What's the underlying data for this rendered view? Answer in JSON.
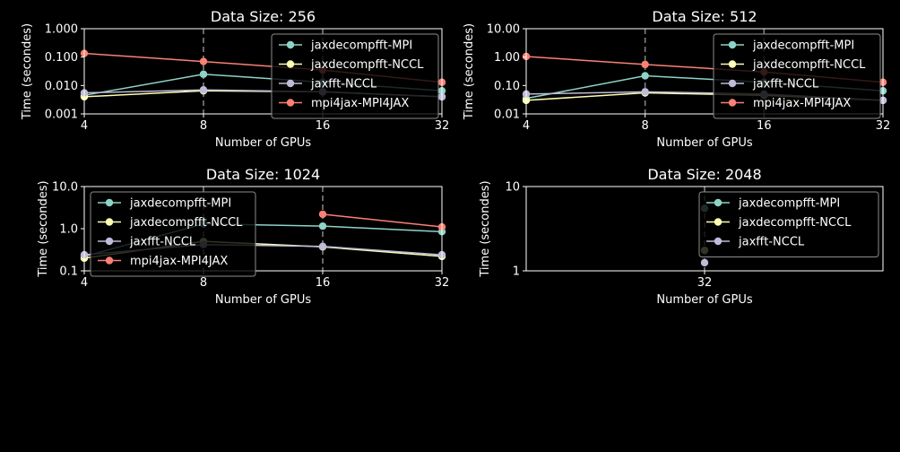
{
  "colors": {
    "background": "#000000",
    "grid": "#7f7f7f",
    "series": {
      "jaxdecompfft-MPI": "#8dd3c7",
      "jaxdecompfft-NCCL": "#feffb3",
      "jaxfft-NCCL": "#bfbbd9",
      "mpi4jax-MPI4JAX": "#fa8174"
    }
  },
  "chart_data": [
    {
      "type": "line",
      "title": "Data Size: 256",
      "xlabel": "Number of GPUs",
      "ylabel": "Time (secondes)",
      "x_scale": "log2",
      "y_scale": "log10",
      "xlim": [
        4,
        32
      ],
      "ylim": [
        0.001,
        1.0
      ],
      "xticks": [
        4,
        8,
        16,
        32
      ],
      "xtick_labels": [
        "4",
        "8",
        "16",
        "32"
      ],
      "yticks": [
        0.001,
        0.01,
        0.1,
        1.0
      ],
      "ytick_labels": [
        "0.001",
        "0.010",
        "0.100",
        "1.000"
      ],
      "vgrid": [
        8,
        16
      ],
      "legend_position": "upper right",
      "series": [
        {
          "name": "jaxdecompfft-MPI",
          "x": [
            4,
            8,
            16,
            32
          ],
          "values": [
            0.0045,
            0.025,
            0.013,
            0.0065
          ]
        },
        {
          "name": "jaxdecompfft-NCCL",
          "x": [
            4,
            8,
            16,
            32
          ],
          "values": [
            0.004,
            0.0065,
            0.006,
            0.004
          ]
        },
        {
          "name": "jaxfft-NCCL",
          "x": [
            4,
            8,
            16,
            32
          ],
          "values": [
            0.0055,
            0.007,
            0.006,
            0.004
          ]
        },
        {
          "name": "mpi4jax-MPI4JAX",
          "x": [
            4,
            8,
            16,
            32
          ],
          "values": [
            0.135,
            0.07,
            0.035,
            0.013
          ]
        }
      ]
    },
    {
      "type": "line",
      "title": "Data Size: 512",
      "xlabel": "Number of GPUs",
      "ylabel": "Time (secondes)",
      "x_scale": "log2",
      "y_scale": "log10",
      "xlim": [
        4,
        32
      ],
      "ylim": [
        0.01,
        10.0
      ],
      "xticks": [
        4,
        8,
        16,
        32
      ],
      "xtick_labels": [
        "4",
        "8",
        "16",
        "32"
      ],
      "yticks": [
        0.01,
        0.1,
        1.0,
        10.0
      ],
      "ytick_labels": [
        "0.01",
        "0.10",
        "1.00",
        "10.00"
      ],
      "vgrid": [
        8,
        16
      ],
      "legend_position": "upper right",
      "series": [
        {
          "name": "jaxdecompfft-MPI",
          "x": [
            4,
            8,
            16,
            32
          ],
          "values": [
            0.035,
            0.22,
            0.13,
            0.065
          ]
        },
        {
          "name": "jaxdecompfft-NCCL",
          "x": [
            4,
            8,
            16,
            32
          ],
          "values": [
            0.03,
            0.055,
            0.045,
            0.03
          ]
        },
        {
          "name": "jaxfft-NCCL",
          "x": [
            4,
            8,
            16,
            32
          ],
          "values": [
            0.05,
            0.06,
            0.05,
            0.03
          ]
        },
        {
          "name": "mpi4jax-MPI4JAX",
          "x": [
            4,
            8,
            16,
            32
          ],
          "values": [
            1.05,
            0.55,
            0.3,
            0.13
          ]
        }
      ]
    },
    {
      "type": "line",
      "title": "Data Size: 1024",
      "xlabel": "Number of GPUs",
      "ylabel": "Time (secondes)",
      "x_scale": "log2",
      "y_scale": "log10",
      "xlim": [
        4,
        32
      ],
      "ylim": [
        0.1,
        10.0
      ],
      "xticks": [
        4,
        8,
        16,
        32
      ],
      "xtick_labels": [
        "4",
        "8",
        "16",
        "32"
      ],
      "yticks": [
        0.1,
        1.0,
        10.0
      ],
      "ytick_labels": [
        "0.1",
        "1.0",
        "10.0"
      ],
      "vgrid": [
        8,
        16
      ],
      "legend_position": "upper left",
      "series": [
        {
          "name": "jaxdecompfft-MPI",
          "x": [
            4,
            8,
            16,
            32
          ],
          "values": [
            0.22,
            1.3,
            1.15,
            0.85
          ]
        },
        {
          "name": "jaxdecompfft-NCCL",
          "x": [
            4,
            8,
            16,
            32
          ],
          "values": [
            0.2,
            0.5,
            0.37,
            0.22
          ]
        },
        {
          "name": "jaxfft-NCCL",
          "x": [
            4,
            8,
            16,
            32
          ],
          "values": [
            0.24,
            0.42,
            0.38,
            0.24
          ]
        },
        {
          "name": "mpi4jax-MPI4JAX",
          "x": [
            16,
            32
          ],
          "values": [
            2.2,
            1.1
          ]
        }
      ]
    },
    {
      "type": "line",
      "title": "Data Size: 2048",
      "xlabel": "Number of GPUs",
      "ylabel": "Time (secondes)",
      "x_scale": "linear",
      "y_scale": "log10",
      "xlim": [
        31.8,
        32.2
      ],
      "ylim": [
        1,
        10
      ],
      "xticks": [
        32
      ],
      "xtick_labels": [
        "32"
      ],
      "yticks": [
        1,
        10
      ],
      "ytick_labels": [
        "1",
        "10"
      ],
      "vgrid": [
        32
      ],
      "legend_position": "upper right",
      "series": [
        {
          "name": "jaxdecompfft-MPI",
          "x": [
            32
          ],
          "values": [
            5.5
          ]
        },
        {
          "name": "jaxdecompfft-NCCL",
          "x": [
            32
          ],
          "values": [
            1.75
          ]
        },
        {
          "name": "jaxfft-NCCL",
          "x": [
            32
          ],
          "values": [
            1.25
          ]
        }
      ]
    }
  ]
}
